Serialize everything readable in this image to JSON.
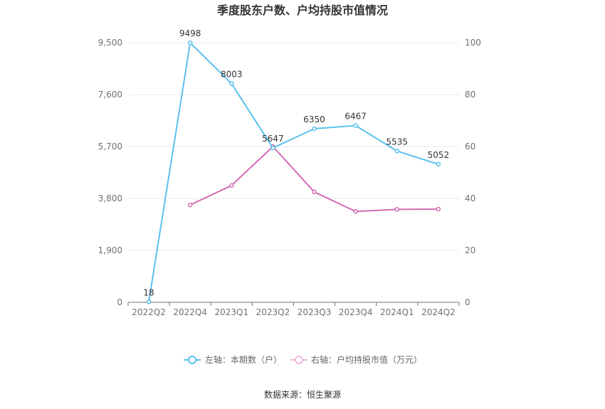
{
  "chart_data": {
    "type": "line",
    "title": "季度股东户数、户均持股市值情况",
    "categories": [
      "2022Q2",
      "2022Q4",
      "2023Q1",
      "2023Q2",
      "2023Q3",
      "2023Q4",
      "2024Q1",
      "2024Q2"
    ],
    "left_axis": {
      "ylim": [
        0,
        9500
      ],
      "ticks": [
        "0",
        "1,900",
        "3,800",
        "5,700",
        "7,600",
        "9,500"
      ]
    },
    "right_axis": {
      "ylim": [
        0,
        100
      ],
      "ticks": [
        "0",
        "20",
        "40",
        "60",
        "80",
        "100"
      ]
    },
    "grid": true,
    "legend_position": "bottom",
    "series": [
      {
        "name": "左轴：本期数（户）",
        "axis": "left",
        "color": "#5bc0ee",
        "values": [
          18,
          9498,
          8003,
          5647,
          6350,
          6467,
          5535,
          5052
        ],
        "labels": [
          "18",
          "9498",
          "8003",
          "5647",
          "6350",
          "6467",
          "5535",
          "5052"
        ]
      },
      {
        "name": "右轴：户均持股市值（万元）",
        "axis": "right",
        "color": "#d36bb1",
        "values": [
          null,
          37.5,
          45.0,
          60.0,
          42.5,
          35.0,
          35.8,
          35.9
        ]
      }
    ],
    "source": "数据来源：恒生聚源"
  }
}
